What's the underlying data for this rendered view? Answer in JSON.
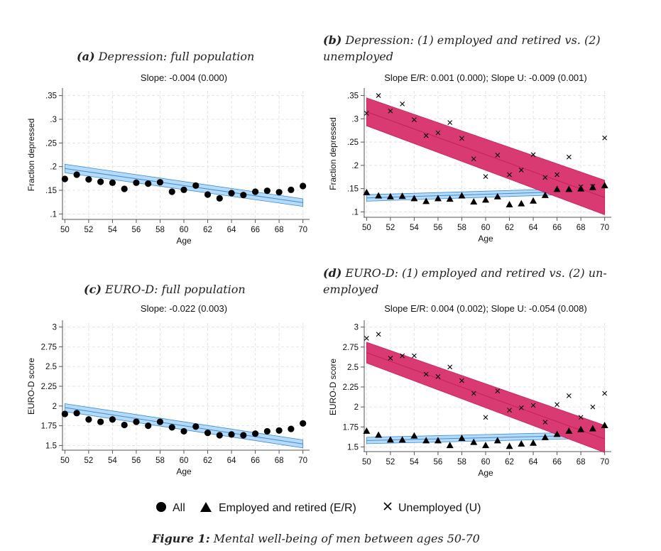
{
  "panels": {
    "a": {
      "tag": "(a)",
      "title": "Depression: full population"
    },
    "b": {
      "tag": "(b)",
      "title_line1": "Depression: (1) employed and retired vs. (2)",
      "title_line2": "unemployed"
    },
    "c": {
      "tag": "(c)",
      "title": "EURO-D: full population"
    },
    "d": {
      "tag": "(d)",
      "title_line1": "EURO-D: (1) employed and retired vs. (2) un-",
      "title_line2": "employed"
    }
  },
  "legend": {
    "all_label": "All",
    "er_label": "Employed and retired (E/R)",
    "u_label": "Unemployed (U)"
  },
  "caption": {
    "label": "Figure 1:",
    "text": "Mental well-being of men between ages 50-70"
  },
  "colors": {
    "blue_line": "#3a8fd8",
    "blue_band": "#a9d3f7",
    "red_line": "#c81e5a",
    "red_band": "#d93a72"
  },
  "chart_data": [
    {
      "id": "a",
      "type": "scatter",
      "title": "Slope: -0.004 (0.000)",
      "xlabel": "Age",
      "ylabel": "Fraction depressed",
      "xlim": [
        49.8,
        70.2
      ],
      "ylim": [
        0.09,
        0.36
      ],
      "xticks": [
        "50",
        "52",
        "54",
        "56",
        "58",
        "60",
        "62",
        "64",
        "66",
        "68",
        "70"
      ],
      "yticks": [
        {
          "v": 0.1,
          "l": ".1"
        },
        {
          "v": 0.15,
          "l": ".15"
        },
        {
          "v": 0.2,
          "l": ".2"
        },
        {
          "v": 0.25,
          "l": ".25"
        },
        {
          "v": 0.3,
          "l": ".3"
        },
        {
          "v": 0.35,
          "l": ".35"
        }
      ],
      "series": [
        {
          "name": "All",
          "marker": "circle",
          "x": [
            50,
            51,
            52,
            53,
            54,
            55,
            56,
            57,
            58,
            59,
            60,
            61,
            62,
            63,
            64,
            65,
            66,
            67,
            68,
            69,
            70
          ],
          "y": [
            0.174,
            0.183,
            0.173,
            0.168,
            0.166,
            0.153,
            0.166,
            0.164,
            0.167,
            0.147,
            0.151,
            0.16,
            0.141,
            0.133,
            0.144,
            0.14,
            0.147,
            0.149,
            0.146,
            0.151,
            0.159
          ],
          "fit": {
            "y0": 0.196,
            "y1": 0.124,
            "band0": 0.009,
            "band1": 0.008,
            "color": "blue"
          }
        }
      ]
    },
    {
      "id": "b",
      "type": "scatter",
      "title": "Slope E/R: 0.001 (0.000); Slope U: -0.009 (0.001)",
      "xlabel": "Age",
      "ylabel": "Fraction depressed",
      "xlim": [
        49.8,
        70.2
      ],
      "ylim": [
        0.09,
        0.36
      ],
      "xticks": [
        "50",
        "52",
        "54",
        "56",
        "58",
        "60",
        "62",
        "64",
        "66",
        "68",
        "70"
      ],
      "yticks": [
        {
          "v": 0.1,
          "l": ".1"
        },
        {
          "v": 0.15,
          "l": ".15"
        },
        {
          "v": 0.2,
          "l": ".2"
        },
        {
          "v": 0.25,
          "l": ".25"
        },
        {
          "v": 0.3,
          "l": ".3"
        },
        {
          "v": 0.35,
          "l": ".35"
        }
      ],
      "series": [
        {
          "name": "Employed and retired (E/R)",
          "marker": "triangle",
          "x": [
            50,
            51,
            52,
            53,
            54,
            55,
            56,
            57,
            58,
            59,
            60,
            61,
            62,
            63,
            64,
            65,
            66,
            67,
            68,
            69,
            70
          ],
          "y": [
            0.142,
            0.135,
            0.133,
            0.134,
            0.129,
            0.123,
            0.129,
            0.128,
            0.135,
            0.122,
            0.126,
            0.133,
            0.116,
            0.118,
            0.124,
            0.136,
            0.149,
            0.149,
            0.15,
            0.153,
            0.157
          ],
          "fit": {
            "y0": 0.13,
            "y1": 0.146,
            "band0": 0.007,
            "band1": 0.006,
            "color": "blue"
          }
        },
        {
          "name": "Unemployed (U)",
          "marker": "x",
          "x": [
            50,
            51,
            52,
            53,
            54,
            55,
            56,
            57,
            58,
            59,
            60,
            61,
            62,
            63,
            64,
            65,
            66,
            67,
            68,
            69,
            70
          ],
          "y": [
            0.312,
            0.35,
            0.317,
            0.332,
            0.298,
            0.264,
            0.27,
            0.292,
            0.258,
            0.214,
            0.176,
            0.222,
            0.18,
            0.19,
            0.223,
            0.174,
            0.18,
            0.218,
            0.154,
            0.155,
            0.259
          ],
          "fit": {
            "y0": 0.315,
            "y1": 0.131,
            "band0": 0.03,
            "band1": 0.037,
            "color": "red"
          }
        }
      ]
    },
    {
      "id": "c",
      "type": "scatter",
      "title": "Slope: -0.022 (0.003)",
      "xlabel": "Age",
      "ylabel": "EURO-D score",
      "xlim": [
        49.8,
        70.2
      ],
      "ylim": [
        1.45,
        3.05
      ],
      "xticks": [
        "50",
        "52",
        "54",
        "56",
        "58",
        "60",
        "62",
        "64",
        "66",
        "68",
        "70"
      ],
      "yticks": [
        {
          "v": 1.5,
          "l": "1.5"
        },
        {
          "v": 1.75,
          "l": "1.75"
        },
        {
          "v": 2,
          "l": "2"
        },
        {
          "v": 2.25,
          "l": "2.25"
        },
        {
          "v": 2.5,
          "l": "2.5"
        },
        {
          "v": 2.75,
          "l": "2.75"
        },
        {
          "v": 3,
          "l": "3"
        }
      ],
      "series": [
        {
          "name": "All",
          "marker": "circle",
          "x": [
            50,
            51,
            52,
            53,
            54,
            55,
            56,
            57,
            58,
            59,
            60,
            61,
            62,
            63,
            64,
            65,
            66,
            67,
            68,
            69,
            70
          ],
          "y": [
            1.9,
            1.91,
            1.83,
            1.8,
            1.83,
            1.76,
            1.8,
            1.75,
            1.8,
            1.73,
            1.68,
            1.74,
            1.66,
            1.63,
            1.64,
            1.63,
            1.65,
            1.68,
            1.69,
            1.71,
            1.78
          ],
          "fit": {
            "y0": 1.98,
            "y1": 1.52,
            "band0": 0.05,
            "band1": 0.05,
            "color": "blue"
          }
        }
      ]
    },
    {
      "id": "d",
      "type": "scatter",
      "title": "Slope E/R: 0.004 (0.002); Slope U: -0.054 (0.008)",
      "xlabel": "Age",
      "ylabel": "EURO-D score",
      "xlim": [
        49.8,
        70.2
      ],
      "ylim": [
        1.45,
        3.05
      ],
      "xticks": [
        "50",
        "52",
        "54",
        "56",
        "58",
        "60",
        "62",
        "64",
        "66",
        "68",
        "70"
      ],
      "yticks": [
        {
          "v": 1.5,
          "l": "1.5"
        },
        {
          "v": 1.75,
          "l": "1.75"
        },
        {
          "v": 2,
          "l": "2"
        },
        {
          "v": 2.25,
          "l": "2.25"
        },
        {
          "v": 2.5,
          "l": "2.5"
        },
        {
          "v": 2.75,
          "l": "2.75"
        },
        {
          "v": 3,
          "l": "3"
        }
      ],
      "series": [
        {
          "name": "Employed and retired (E/R)",
          "marker": "triangle",
          "x": [
            50,
            51,
            52,
            53,
            54,
            55,
            56,
            57,
            58,
            59,
            60,
            61,
            62,
            63,
            64,
            65,
            66,
            67,
            68,
            69,
            70
          ],
          "y": [
            1.7,
            1.65,
            1.59,
            1.59,
            1.64,
            1.58,
            1.58,
            1.52,
            1.61,
            1.56,
            1.52,
            1.58,
            1.51,
            1.54,
            1.55,
            1.62,
            1.66,
            1.7,
            1.72,
            1.73,
            1.77
          ],
          "fit": {
            "y0": 1.58,
            "y1": 1.65,
            "band0": 0.04,
            "band1": 0.04,
            "color": "blue"
          }
        },
        {
          "name": "Unemployed (U)",
          "marker": "x",
          "x": [
            50,
            51,
            52,
            53,
            54,
            55,
            56,
            57,
            58,
            59,
            60,
            61,
            62,
            63,
            64,
            65,
            66,
            67,
            68,
            69,
            70
          ],
          "y": [
            2.86,
            2.91,
            2.61,
            2.64,
            2.64,
            2.41,
            2.38,
            2.5,
            2.33,
            2.17,
            1.87,
            2.2,
            1.96,
            1.99,
            2.02,
            1.81,
            2.03,
            2.14,
            1.87,
            2.0,
            2.17
          ],
          "fit": {
            "y0": 2.68,
            "y1": 1.6,
            "band0": 0.13,
            "band1": 0.17,
            "color": "red"
          }
        }
      ]
    }
  ]
}
